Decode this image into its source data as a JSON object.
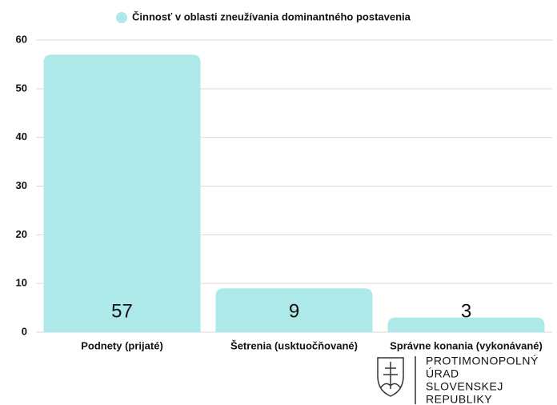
{
  "chart_data": {
    "type": "bar",
    "series": [
      {
        "name": "Činnosť v oblasti zneužívania dominantného postavenia",
        "color": "#aee9ea",
        "values": [
          57,
          9,
          3
        ]
      }
    ],
    "categories": [
      "Podnety (prijaté)",
      "Šetrenia (usktuočňované)",
      "Správne konania (vykonávané)"
    ],
    "ylim": [
      0,
      60
    ],
    "yticks": [
      0,
      10,
      20,
      30,
      40,
      50,
      60
    ],
    "grid": true,
    "legend": "top",
    "logo": [
      "PROTIMONOPOLNÝ",
      "ÚRAD",
      "SLOVENSKEJ",
      "REPUBLIKY"
    ]
  }
}
